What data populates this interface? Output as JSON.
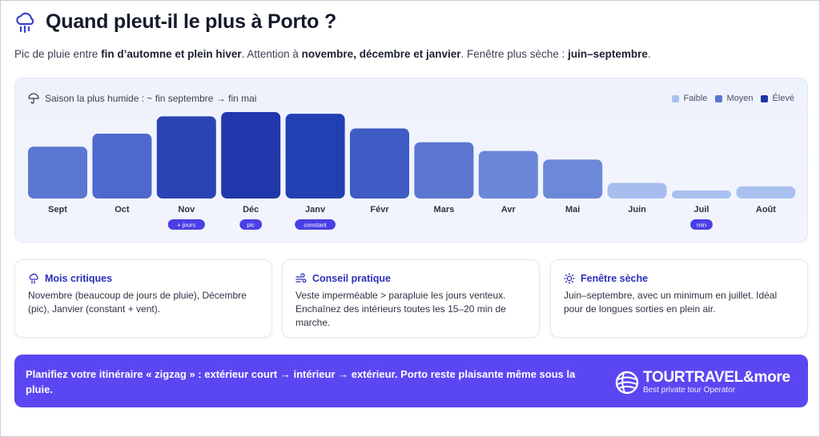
{
  "header": {
    "title": "Quand pleut-il le plus à Porto ?",
    "icon": "cloud-rain-icon"
  },
  "subtitle": {
    "part1": "Pic de pluie entre ",
    "bold1": "fin d’automne et plein hiver",
    "part2": ". Attention à ",
    "bold2": "novembre, décembre et janvier",
    "part3": ". Fenêtre plus sèche : ",
    "bold3": "juin–septembre",
    "part4": "."
  },
  "season_label": "Saison la plus humide : ~ fin septembre → fin mai",
  "legend": [
    {
      "label": "Faible",
      "color": "#a9c0ec"
    },
    {
      "label": "Moyen",
      "color": "#5b78d0"
    },
    {
      "label": "Élevé",
      "color": "#1f36a6"
    }
  ],
  "chart_data": {
    "type": "bar",
    "categories": [
      "Sept",
      "Oct",
      "Nov",
      "Déc",
      "Janv",
      "Févr",
      "Mars",
      "Avr",
      "Mai",
      "Juin",
      "Juil",
      "Août"
    ],
    "values": [
      60,
      75,
      95,
      100,
      98,
      81,
      65,
      55,
      45,
      18,
      8,
      14
    ],
    "ylim": [
      0,
      100
    ],
    "colors": [
      "#5a78d2",
      "#4e69cc",
      "#2a44b5",
      "#2038ab",
      "#2340b2",
      "#3f5bc4",
      "#5a76ce",
      "#6a87d8",
      "#6c89d9",
      "#a6bdee",
      "#a9c0f0",
      "#aac1f0"
    ],
    "badges": [
      {
        "month": "Nov",
        "label": "+ jours"
      },
      {
        "month": "Déc",
        "label": "pic"
      },
      {
        "month": "Janv",
        "label": "constant"
      },
      {
        "month": "Juil",
        "label": "min"
      }
    ],
    "badge_color": "#4b3fe6"
  },
  "cards": [
    {
      "icon": "cloud-rain-icon",
      "title": "Mois critiques",
      "text": "Novembre (beaucoup de jours de pluie), Décembre (pic), Janvier (constant + vent)."
    },
    {
      "icon": "wind-icon",
      "title": "Conseil pratique",
      "text": "Veste imperméable > parapluie les jours venteux. Enchaînez des intérieurs toutes les 15–20 min de marche."
    },
    {
      "icon": "sun-icon",
      "title": "Fenêtre sèche",
      "text": "Juin–septembre, avec un minimum en juillet. Idéal pour de longues sorties en plein air."
    }
  ],
  "banner": {
    "text": "Planifiez votre itinéraire « zigzag » : extérieur court → intérieur → extérieur. Porto reste plaisante même sous la pluie.",
    "background": "#5b47f2"
  },
  "brand": {
    "name": "TOURTRAVEL&more",
    "tagline": "Best private tour Operator",
    "icon": "globe-logo-icon"
  },
  "colors": {
    "accent": "#2b2fb8",
    "title": "#151a2b"
  }
}
